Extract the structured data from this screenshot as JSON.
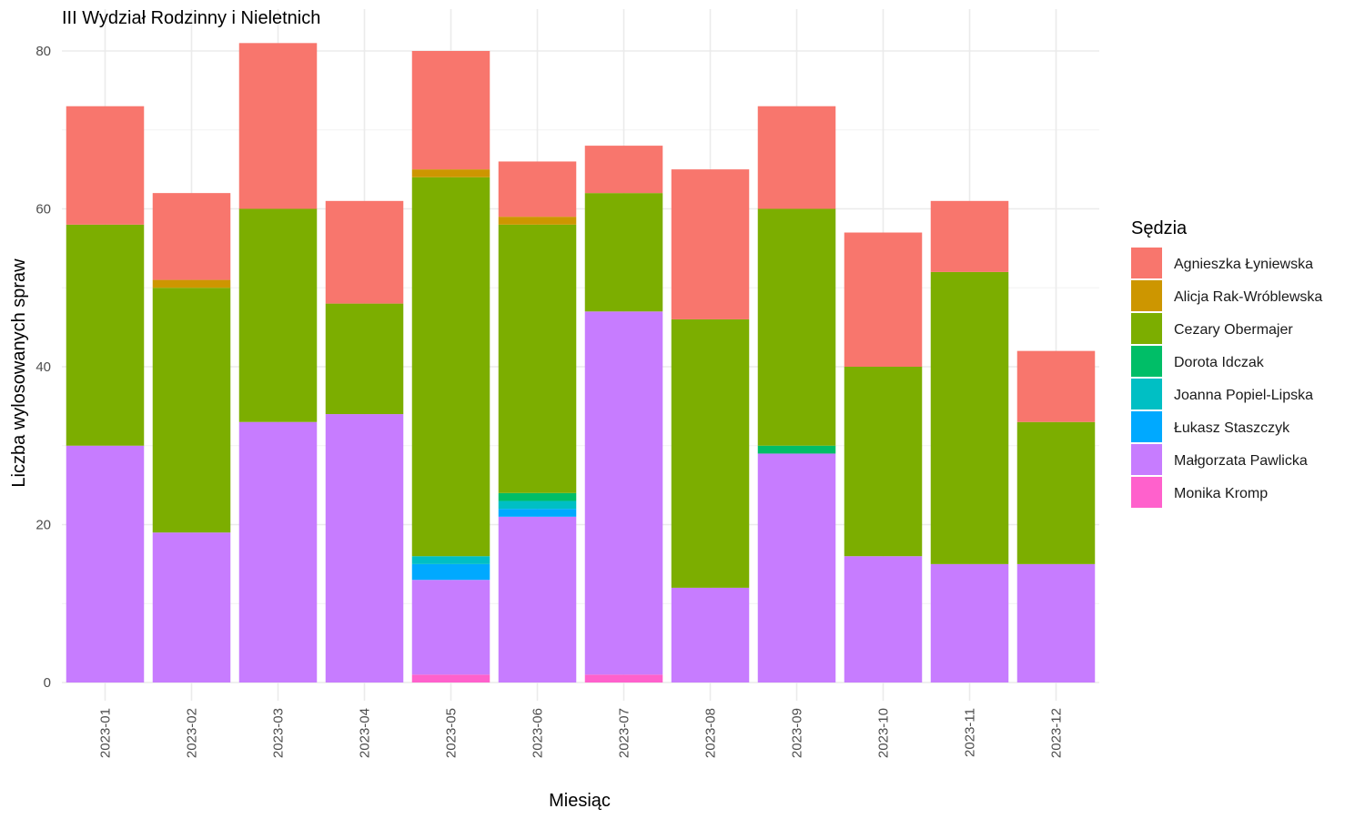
{
  "chart_data": {
    "type": "bar",
    "stacked": true,
    "title": "III Wydział Rodzinny i Nieletnich",
    "xlabel": "Miesiąc",
    "ylabel": "Liczba wylosowanych spraw",
    "ylim": [
      0,
      83
    ],
    "yticks": [
      0,
      20,
      40,
      60,
      80
    ],
    "grid": true,
    "legend_title": "Sędzia",
    "legend_position": "right",
    "categories": [
      "2023-01",
      "2023-02",
      "2023-03",
      "2023-04",
      "2023-05",
      "2023-06",
      "2023-07",
      "2023-08",
      "2023-09",
      "2023-10",
      "2023-11",
      "2023-12"
    ],
    "series": [
      {
        "name": "Agnieszka Łyniewska",
        "color": "#F8766D",
        "values": [
          15,
          11,
          21,
          13,
          15,
          7,
          6,
          19,
          13,
          17,
          9,
          9
        ]
      },
      {
        "name": "Alicja Rak-Wróblewska",
        "color": "#CD9600",
        "values": [
          0,
          1,
          0,
          0,
          1,
          1,
          0,
          0,
          0,
          0,
          0,
          0
        ]
      },
      {
        "name": "Cezary Obermajer",
        "color": "#7CAE00",
        "values": [
          28,
          31,
          27,
          14,
          48,
          34,
          15,
          34,
          30,
          24,
          37,
          18
        ]
      },
      {
        "name": "Dorota Idczak",
        "color": "#00BE67",
        "values": [
          0,
          0,
          0,
          0,
          0,
          1,
          0,
          0,
          1,
          0,
          0,
          0
        ]
      },
      {
        "name": "Joanna Popiel-Lipska",
        "color": "#00BFC4",
        "values": [
          0,
          0,
          0,
          0,
          1,
          1,
          0,
          0,
          0,
          0,
          0,
          0
        ]
      },
      {
        "name": "Łukasz Staszczyk",
        "color": "#00A9FF",
        "values": [
          0,
          0,
          0,
          0,
          2,
          1,
          0,
          0,
          0,
          0,
          0,
          0
        ]
      },
      {
        "name": "Małgorzata Pawlicka",
        "color": "#C77CFF",
        "values": [
          30,
          19,
          33,
          34,
          12,
          21,
          46,
          12,
          29,
          16,
          15,
          15
        ]
      },
      {
        "name": "Monika Kromp",
        "color": "#FF61CC",
        "values": [
          0,
          0,
          0,
          0,
          1,
          0,
          1,
          0,
          0,
          0,
          0,
          0
        ]
      }
    ]
  }
}
